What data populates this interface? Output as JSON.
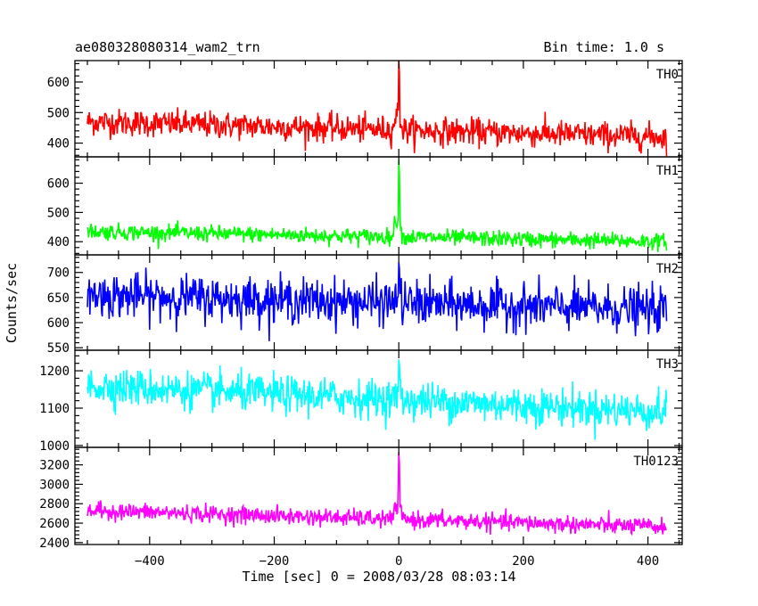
{
  "header": {
    "title": "ae080328080314_wam2_trn",
    "bin_time": "Bin time: 1.0 s"
  },
  "chart_data": {
    "type": "line",
    "title": "ae080328080314_wam2_trn",
    "xlabel": "Time [sec] 0 = 2008/03/28 08:03:14",
    "ylabel": "Counts/sec",
    "xlim": [
      -520,
      455
    ],
    "x_range": [
      -500,
      430
    ],
    "x_ticks": [
      -400,
      -200,
      0,
      200,
      400
    ],
    "peak_x": 0,
    "grid": false,
    "series": [
      {
        "name": "TH0",
        "color": "#ff0000",
        "ylim": [
          355,
          670
        ],
        "y_ticks": [
          400,
          500,
          600
        ],
        "baseline_start": 470,
        "baseline_end": 420,
        "noise": 40,
        "peak_height": 670
      },
      {
        "name": "TH1",
        "color": "#00ff00",
        "ylim": [
          355,
          690
        ],
        "y_ticks": [
          400,
          500,
          600
        ],
        "baseline_start": 435,
        "baseline_end": 400,
        "noise": 25,
        "peak_height": 680
      },
      {
        "name": "TH2",
        "color": "#0000ff",
        "ylim": [
          545,
          735
        ],
        "y_ticks": [
          550,
          600,
          650,
          700
        ],
        "baseline_start": 655,
        "baseline_end": 625,
        "noise": 40,
        "peak_height": 720
      },
      {
        "name": "TH3",
        "color": "#00ffff",
        "ylim": [
          995,
          1255
        ],
        "y_ticks": [
          1000,
          1100,
          1200
        ],
        "baseline_start": 1160,
        "baseline_end": 1090,
        "noise": 45,
        "peak_height": 1230
      },
      {
        "name": "TH0123",
        "color": "#ff00ff",
        "ylim": [
          2380,
          3380
        ],
        "y_ticks": [
          2400,
          2600,
          2800,
          3000,
          3200
        ],
        "baseline_start": 2730,
        "baseline_end": 2560,
        "noise": 80,
        "peak_height": 3330
      }
    ]
  }
}
